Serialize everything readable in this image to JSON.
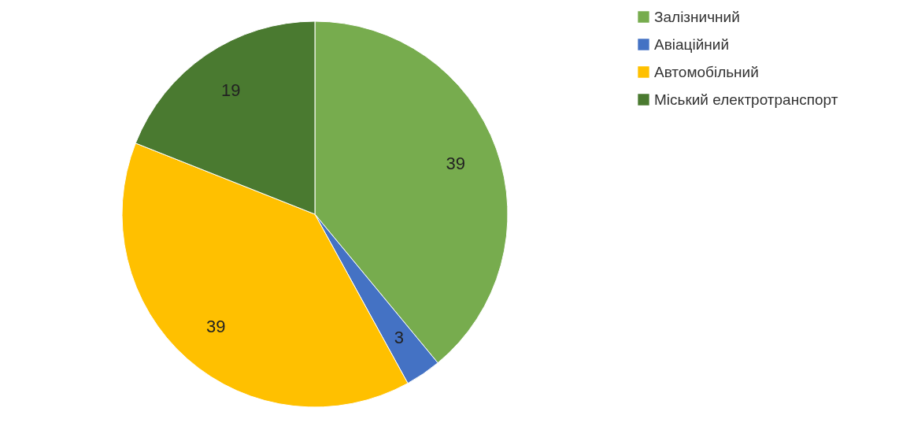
{
  "chart_data": {
    "type": "pie",
    "categories": [
      "Залізничний",
      "Авіаційний",
      "Автомобільний",
      "Міський електротранспорт"
    ],
    "values": [
      39,
      3,
      39,
      19
    ],
    "colors": [
      "#77ac4e",
      "#4472c4",
      "#ffc000",
      "#4a7a30"
    ],
    "data_labels": true,
    "legend": "top right"
  }
}
